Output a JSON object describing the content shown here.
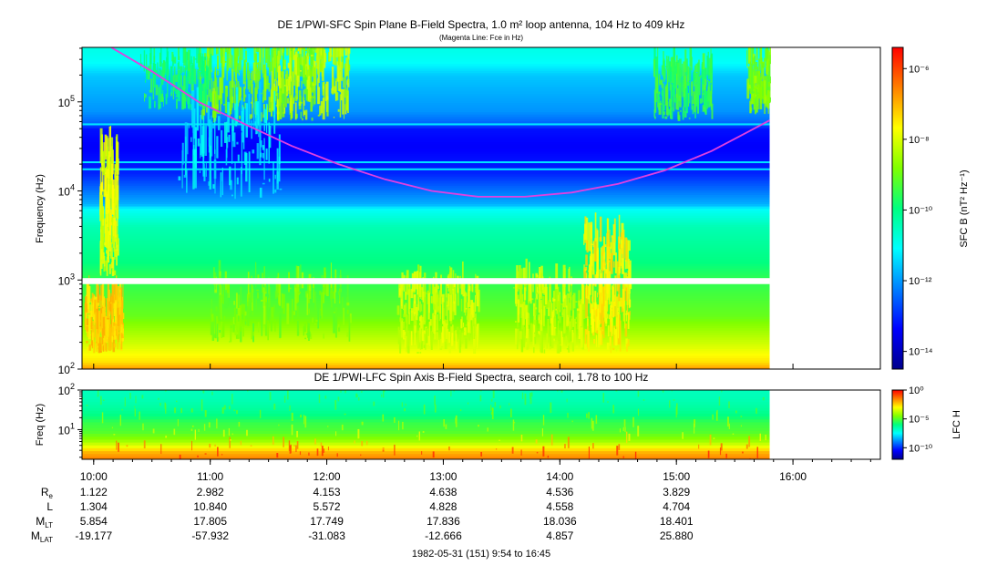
{
  "colors": {
    "background": "#ffffff",
    "fce_line": "#e040e0",
    "colormap": [
      "#00008c",
      "#0000ff",
      "#0080ff",
      "#00ffff",
      "#00ff80",
      "#80ff00",
      "#ffff00",
      "#ff8000",
      "#ff0000"
    ]
  },
  "chart_data": [
    {
      "type": "heatmap",
      "title": "DE 1/PWI-SFC  Spin Plane B-Field Spectra, 1.0 m² loop antenna, 104 Hz to 409 kHz",
      "subtitle": "(Magenta Line: Fce in Hz)",
      "ylabel": "Frequency (Hz)",
      "yscale": "log",
      "ylim": [
        100,
        409000
      ],
      "y_ticks": [
        {
          "value": 100,
          "base": "10",
          "exp": "2"
        },
        {
          "value": 1000,
          "base": "10",
          "exp": "3"
        },
        {
          "value": 10000,
          "base": "10",
          "exp": "4"
        },
        {
          "value": 100000,
          "base": "10",
          "exp": "5"
        }
      ],
      "xlim_hours": [
        9.9,
        16.75
      ],
      "data_end_hours": 15.8,
      "gap_frequency_range_hz": [
        900,
        1050
      ],
      "colorbar": {
        "label": "SFC B (nT² Hz⁻¹)",
        "scale": "log",
        "range_exp": [
          -14.5,
          -5.4
        ],
        "ticks": [
          {
            "value": -14,
            "label": "10⁻¹⁴"
          },
          {
            "value": -12,
            "label": "10⁻¹²"
          },
          {
            "value": -10,
            "label": "10⁻¹⁰"
          },
          {
            "value": -8,
            "label": "10⁻⁸"
          },
          {
            "value": -6,
            "label": "10⁻⁶"
          }
        ]
      },
      "fce_line": {
        "x_hours": [
          10.15,
          10.5,
          10.9,
          11.3,
          11.7,
          12.1,
          12.5,
          12.9,
          13.3,
          13.7,
          14.1,
          14.5,
          14.9,
          15.3,
          15.6,
          15.8
        ],
        "y_hz": [
          409000,
          220000,
          100000,
          56000,
          32000,
          20000,
          13500,
          10000,
          8600,
          8600,
          9600,
          12000,
          17000,
          28000,
          45000,
          62000
        ]
      }
    },
    {
      "type": "heatmap",
      "title": "DE 1/PWI-LFC  Spin Axis B-Field Spectra, search coil, 1.78 to 100 Hz",
      "ylabel": "Freq (Hz)",
      "yscale": "log",
      "ylim": [
        1.78,
        100
      ],
      "y_ticks": [
        {
          "value": 10,
          "base": "10",
          "exp": "1"
        },
        {
          "value": 100,
          "base": "10",
          "exp": "2"
        }
      ],
      "colorbar": {
        "label": "LFC H",
        "scale": "log",
        "range_exp": [
          -12,
          0
        ],
        "ticks": [
          {
            "value": -10,
            "label": "10⁻¹⁰"
          },
          {
            "value": -5,
            "label": "10⁻⁵"
          },
          {
            "value": 0,
            "label": "10⁰"
          }
        ]
      }
    }
  ],
  "xaxis": {
    "tick_labels": [
      "10:00",
      "11:00",
      "12:00",
      "13:00",
      "14:00",
      "15:00",
      "16:00"
    ],
    "tick_hours": [
      10,
      11,
      12,
      13,
      14,
      15,
      16
    ]
  },
  "ephemeris": {
    "rows": [
      {
        "label_main": "R",
        "label_sub": "e",
        "values": [
          "1.122",
          "2.982",
          "4.153",
          "4.638",
          "4.536",
          "3.829"
        ]
      },
      {
        "label_main": "L",
        "label_sub": "",
        "values": [
          "1.304",
          "10.840",
          "5.572",
          "4.828",
          "4.558",
          "4.704"
        ]
      },
      {
        "label_main": "M",
        "label_sub": "LT",
        "values": [
          "5.854",
          "17.805",
          "17.749",
          "17.836",
          "18.036",
          "18.401"
        ]
      },
      {
        "label_main": "M",
        "label_sub": "LAT",
        "values": [
          "-19.177",
          "-57.932",
          "-31.083",
          "-12.666",
          "4.857",
          "25.880"
        ]
      }
    ]
  },
  "footer": {
    "time_range": "1982-05-31 (151) 9:54 to 16:45"
  }
}
